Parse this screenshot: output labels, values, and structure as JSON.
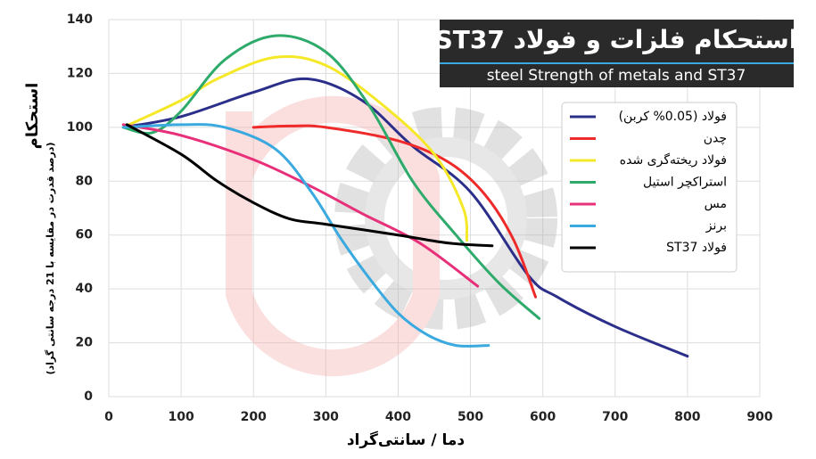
{
  "chart_data": {
    "type": "line",
    "title": "استحکام فلزات و فولاد ST37",
    "subtitle": "steel Strength of metals and ST37",
    "x_label": "دما / سانتی‌گراد",
    "y_label": "استحکام",
    "y_sublabel": "(درصد قدرت در مقایسه با 21 درجه سانتی گراد)",
    "xlim": [
      0,
      900
    ],
    "xticks": [
      0,
      100,
      200,
      300,
      400,
      500,
      600,
      700,
      800,
      900
    ],
    "ylim": [
      0,
      140
    ],
    "yticks": [
      0,
      20,
      40,
      60,
      80,
      100,
      120,
      140
    ],
    "grid": true,
    "series": [
      {
        "name": "فولاد (0.05% کربن)",
        "color": "#2b2f8a",
        "x": [
          20,
          100,
          200,
          275,
          350,
          420,
          500,
          580,
          620,
          700,
          800
        ],
        "values": [
          100,
          104,
          113,
          118,
          110,
          93,
          76,
          45,
          37,
          26,
          15
        ]
      },
      {
        "name": "چدن",
        "color": "#ee2a2a",
        "x": [
          200,
          250,
          300,
          400,
          470,
          520,
          560,
          590
        ],
        "values": [
          100,
          100.5,
          100,
          95,
          87,
          75,
          58,
          37
        ]
      },
      {
        "name": "فولاد ریخته‌گری شده",
        "color": "#f5e829",
        "x": [
          20,
          100,
          150,
          230,
          300,
          380,
          450,
          490,
          495
        ],
        "values": [
          100,
          110,
          118,
          126,
          123,
          108,
          90,
          70,
          58
        ]
      },
      {
        "name": "استراکچر استیل",
        "color": "#2eaa6b",
        "x": [
          20,
          60,
          100,
          160,
          230,
          300,
          360,
          420,
          480,
          540,
          595
        ],
        "values": [
          100,
          98,
          106,
          125,
          134,
          128,
          108,
          80,
          60,
          42,
          29
        ]
      },
      {
        "name": "مس",
        "color": "#e8307a",
        "x": [
          20,
          100,
          200,
          280,
          350,
          430,
          510
        ],
        "values": [
          101,
          97,
          88,
          78,
          68,
          57,
          41
        ]
      },
      {
        "name": "برنز",
        "color": "#3aa9e0",
        "x": [
          20,
          100,
          160,
          230,
          280,
          320,
          360,
          400,
          440,
          480,
          525
        ],
        "values": [
          100,
          101,
          100,
          92,
          76,
          59,
          44,
          31,
          23,
          19,
          19
        ]
      },
      {
        "name": "فولاد ST37",
        "color": "#000000",
        "x": [
          25,
          100,
          150,
          200,
          250,
          300,
          400,
          470,
          530
        ],
        "values": [
          101,
          90,
          80,
          72,
          66,
          64,
          60,
          57,
          56
        ]
      }
    ]
  }
}
